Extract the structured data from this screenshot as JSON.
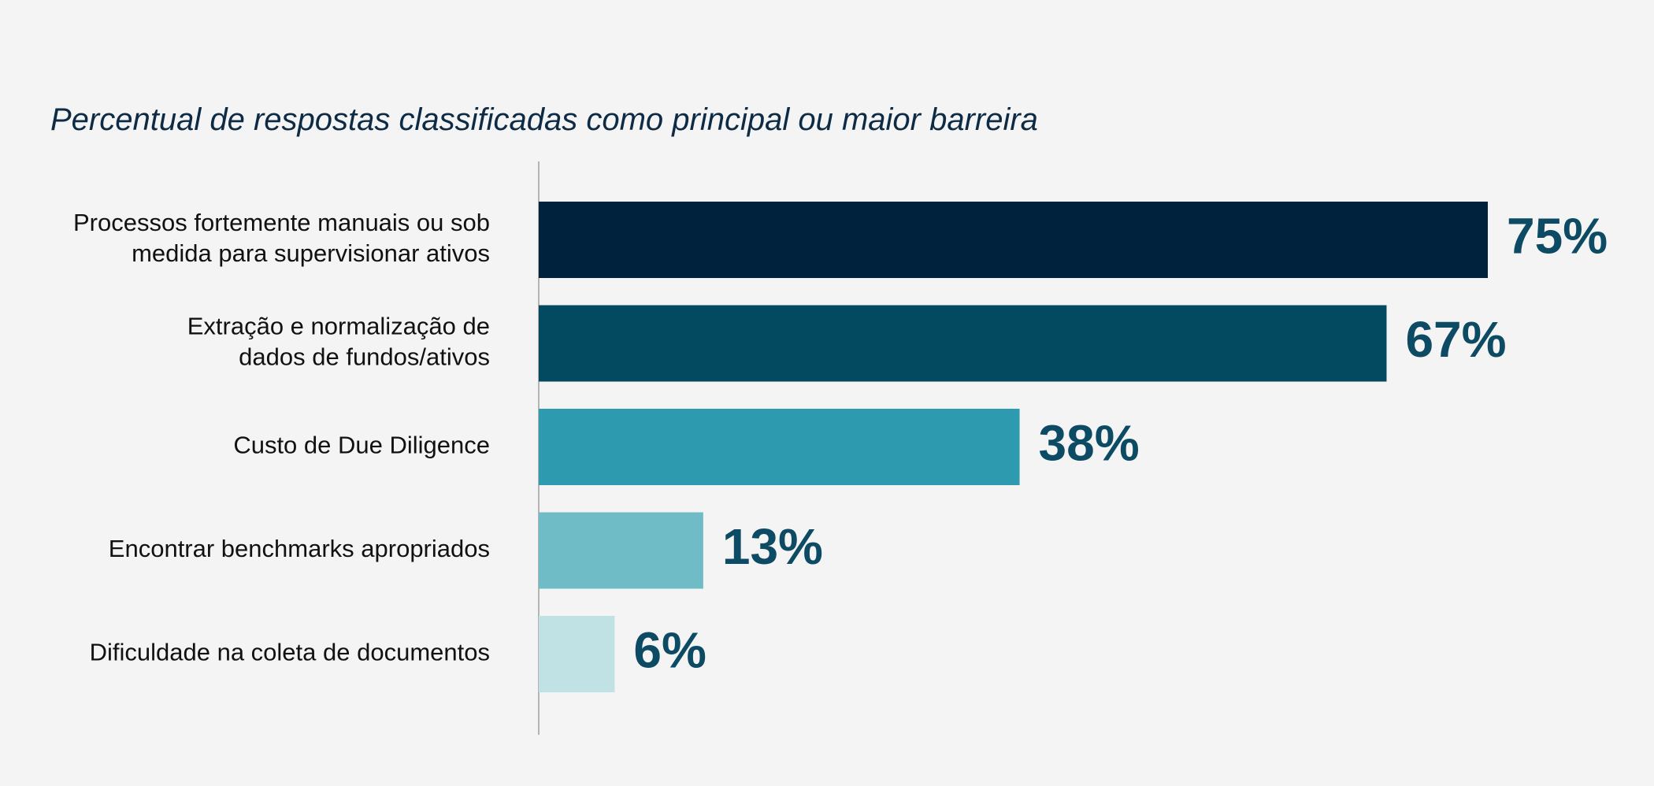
{
  "chart_data": {
    "type": "bar",
    "orientation": "horizontal",
    "title": "Percentual de respostas classificadas como principal ou maior barreira",
    "categories": [
      [
        "Processos fortemente manuais ou sob",
        "medida para supervisionar ativos"
      ],
      [
        "Extração e normalização de",
        "dados de fundos/ativos"
      ],
      [
        "Custo de Due Diligence"
      ],
      [
        "Encontrar benchmarks apropriados"
      ],
      [
        "Dificuldade na coleta de documentos"
      ]
    ],
    "values": [
      75,
      67,
      38,
      13,
      6
    ],
    "value_labels": [
      "75%",
      "67%",
      "38%",
      "13%",
      "6%"
    ],
    "bar_colors": [
      "#01223d",
      "#034a61",
      "#2d9aaf",
      "#6fbcc7",
      "#c0e2e5"
    ],
    "value_label_color": "#0d4a63",
    "xlim": [
      0,
      75
    ],
    "grid": false,
    "legend": "none"
  }
}
